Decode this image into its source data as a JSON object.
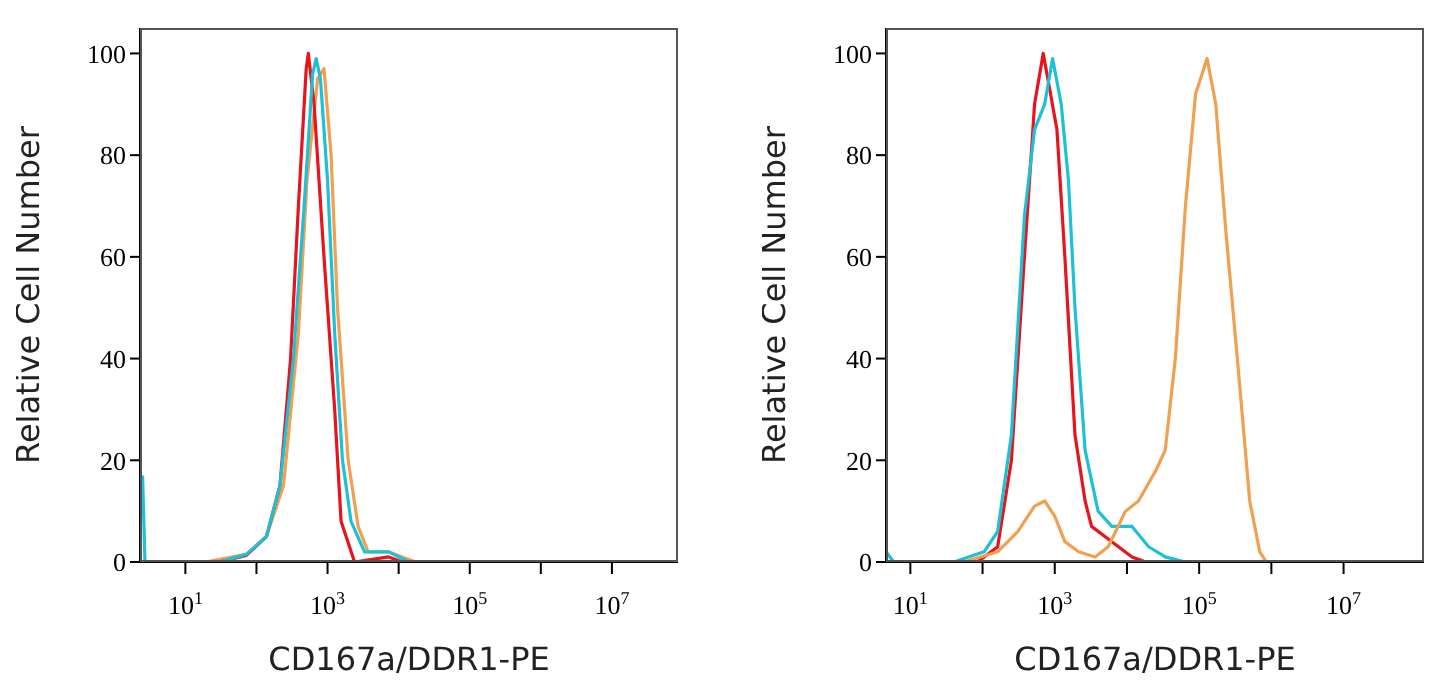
{
  "chart_data": [
    {
      "type": "line",
      "xlabel": "CD167a/DDR1-PE",
      "ylabel": "Relative Cell Number",
      "log": "x",
      "xlim": [
        2.3,
        85000000
      ],
      "xticks": [
        {
          "value": 10,
          "label": "10$^{1}$"
        },
        {
          "value": 100,
          "label": null
        },
        {
          "value": 1000,
          "label": "10$^{3}$"
        },
        {
          "value": 10000,
          "label": null
        },
        {
          "value": 100000,
          "label": "10$^{5}$"
        },
        {
          "value": 1000000,
          "label": null
        },
        {
          "value": 10000000,
          "label": "10$^{7}$"
        }
      ],
      "ylim": [
        0,
        105
      ],
      "yticks": [
        0,
        20,
        40,
        60,
        80,
        100
      ],
      "marker": "none",
      "line_style": "solid",
      "series": [
        {
          "color": "#f0a050",
          "x": [
            19,
            72,
            138,
            240,
            389,
            513,
            724,
            891,
            1122,
            1380,
            1950,
            2692,
            3715,
            7244,
            11220,
            17400,
            85000000
          ],
          "values": [
            0,
            1.5,
            5,
            15,
            45,
            75,
            95,
            97,
            80,
            50,
            20,
            7,
            2,
            2,
            1,
            0,
            0
          ]
        },
        {
          "color": "#e8141c",
          "x": [
            30,
            72,
            138,
            214,
            302,
            389,
            501,
            537,
            646,
            891,
            1259,
            1549,
            2399,
            7244,
            11220,
            85000000
          ],
          "values": [
            0,
            1.3,
            5,
            15,
            40,
            70,
            97,
            100,
            90,
            60,
            30,
            8,
            0,
            1,
            0,
            0
          ]
        },
        {
          "color": "#1ec0d8",
          "x": [
            2.5,
            2.7,
            30,
            72,
            138,
            214,
            331,
            468,
            617,
            692,
            794,
            1000,
            1259,
            1622,
            2138,
            3311,
            7244,
            13800,
            85000000
          ],
          "values": [
            17,
            0,
            0,
            1.5,
            5,
            15,
            40,
            70,
            96,
            99,
            95,
            75,
            45,
            20,
            8,
            2,
            2,
            0,
            0
          ]
        }
      ]
    },
    {
      "type": "line",
      "xlabel": "CD167a/DDR1-PE",
      "ylabel": "Relative Cell Number",
      "log": "x",
      "xlim": [
        4.6,
        130000000
      ],
      "xticks": [
        {
          "value": 10,
          "label": "10$^{1}$"
        },
        {
          "value": 100,
          "label": null
        },
        {
          "value": 1000,
          "label": "10$^{3}$"
        },
        {
          "value": 10000,
          "label": null
        },
        {
          "value": 100000,
          "label": "10$^{5}$"
        },
        {
          "value": 1000000,
          "label": null
        },
        {
          "value": 10000000,
          "label": "10$^{7}$"
        }
      ],
      "ylim": [
        0,
        105
      ],
      "yticks": [
        0,
        20,
        40,
        60,
        80,
        100
      ],
      "marker": "none",
      "line_style": "solid",
      "series": [
        {
          "color": "#e8141c",
          "x": [
            85,
            162,
            251,
            380,
            525,
            692,
            851,
            1072,
            1380,
            1905,
            2630,
            3236,
            6166,
            11750,
            18200,
            130000000
          ],
          "values": [
            0,
            3,
            20,
            60,
            90,
            100,
            93,
            85,
            60,
            25,
            12,
            7,
            4,
            1,
            0,
            0
          ]
        },
        {
          "color": "#1ec0d8",
          "x": [
            4.6,
            5.9,
            40,
            105,
            162,
            251,
            380,
            525,
            724,
            933,
            1230,
            1549,
            1905,
            2630,
            3981,
            6166,
            11750,
            19950,
            33880,
            64570,
            130000000
          ],
          "values": [
            2,
            0,
            0,
            2,
            6,
            25,
            68,
            85,
            90,
            99,
            90,
            75,
            50,
            22,
            10,
            7,
            7,
            3,
            1,
            0,
            0
          ]
        },
        {
          "color": "#f0a050",
          "x": [
            55,
            162,
            309,
            525,
            724,
            1000,
            1380,
            2138,
            3631,
            5495,
            9550,
            14450,
            25120,
            33880,
            46770,
            64570,
            89130,
            128800,
            169800,
            234400,
            363100,
            501200,
            691800,
            851100,
            130000000
          ],
          "values": [
            0,
            2,
            6,
            11,
            12,
            9,
            4,
            2,
            1,
            3,
            10,
            12,
            18,
            22,
            40,
            70,
            92,
            99,
            90,
            65,
            35,
            12,
            2,
            0,
            0
          ]
        }
      ]
    }
  ]
}
